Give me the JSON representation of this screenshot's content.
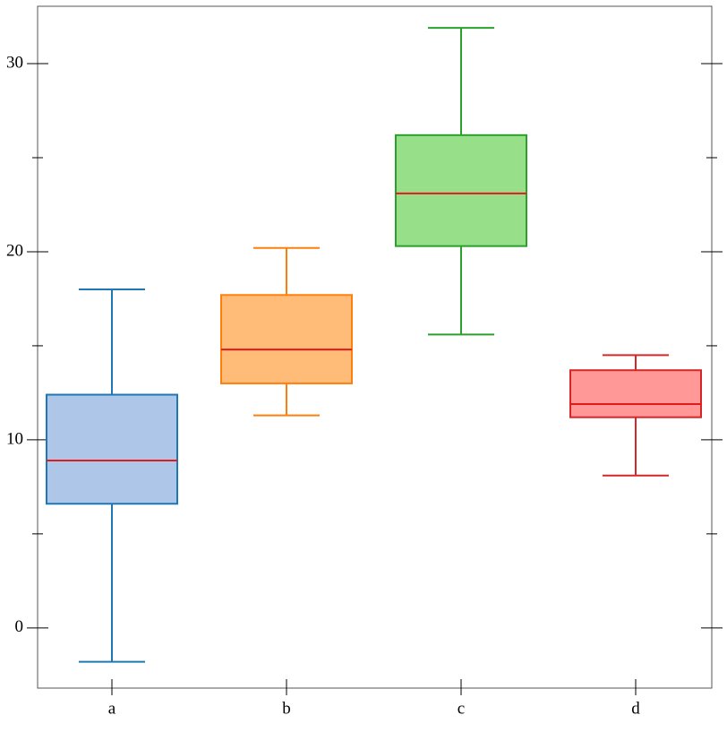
{
  "chart_data": {
    "type": "box",
    "categories": [
      "a",
      "b",
      "c",
      "d"
    ],
    "boxes": [
      {
        "low": -1.8,
        "q1": 6.6,
        "median": 8.9,
        "q3": 12.4,
        "high": 18.0,
        "color": "#1f77b4",
        "fill": "#aec7e8"
      },
      {
        "low": 11.3,
        "q1": 13.0,
        "median": 14.8,
        "q3": 17.7,
        "high": 20.2,
        "color": "#ff7f0e",
        "fill": "#ffbb78"
      },
      {
        "low": 15.6,
        "q1": 20.3,
        "median": 23.1,
        "q3": 26.2,
        "high": 31.9,
        "color": "#2ca02c",
        "fill": "#98df8a"
      },
      {
        "low": 8.1,
        "q1": 11.2,
        "median": 11.9,
        "q3": 13.7,
        "high": 14.5,
        "color": "#d62728",
        "fill": "#ff9896"
      }
    ],
    "median_color": "#e31a1c",
    "ylim": [
      -3.2,
      33.05
    ],
    "yticks": [
      0,
      10,
      20,
      30
    ],
    "yminorticks": [
      5,
      15,
      25
    ]
  }
}
